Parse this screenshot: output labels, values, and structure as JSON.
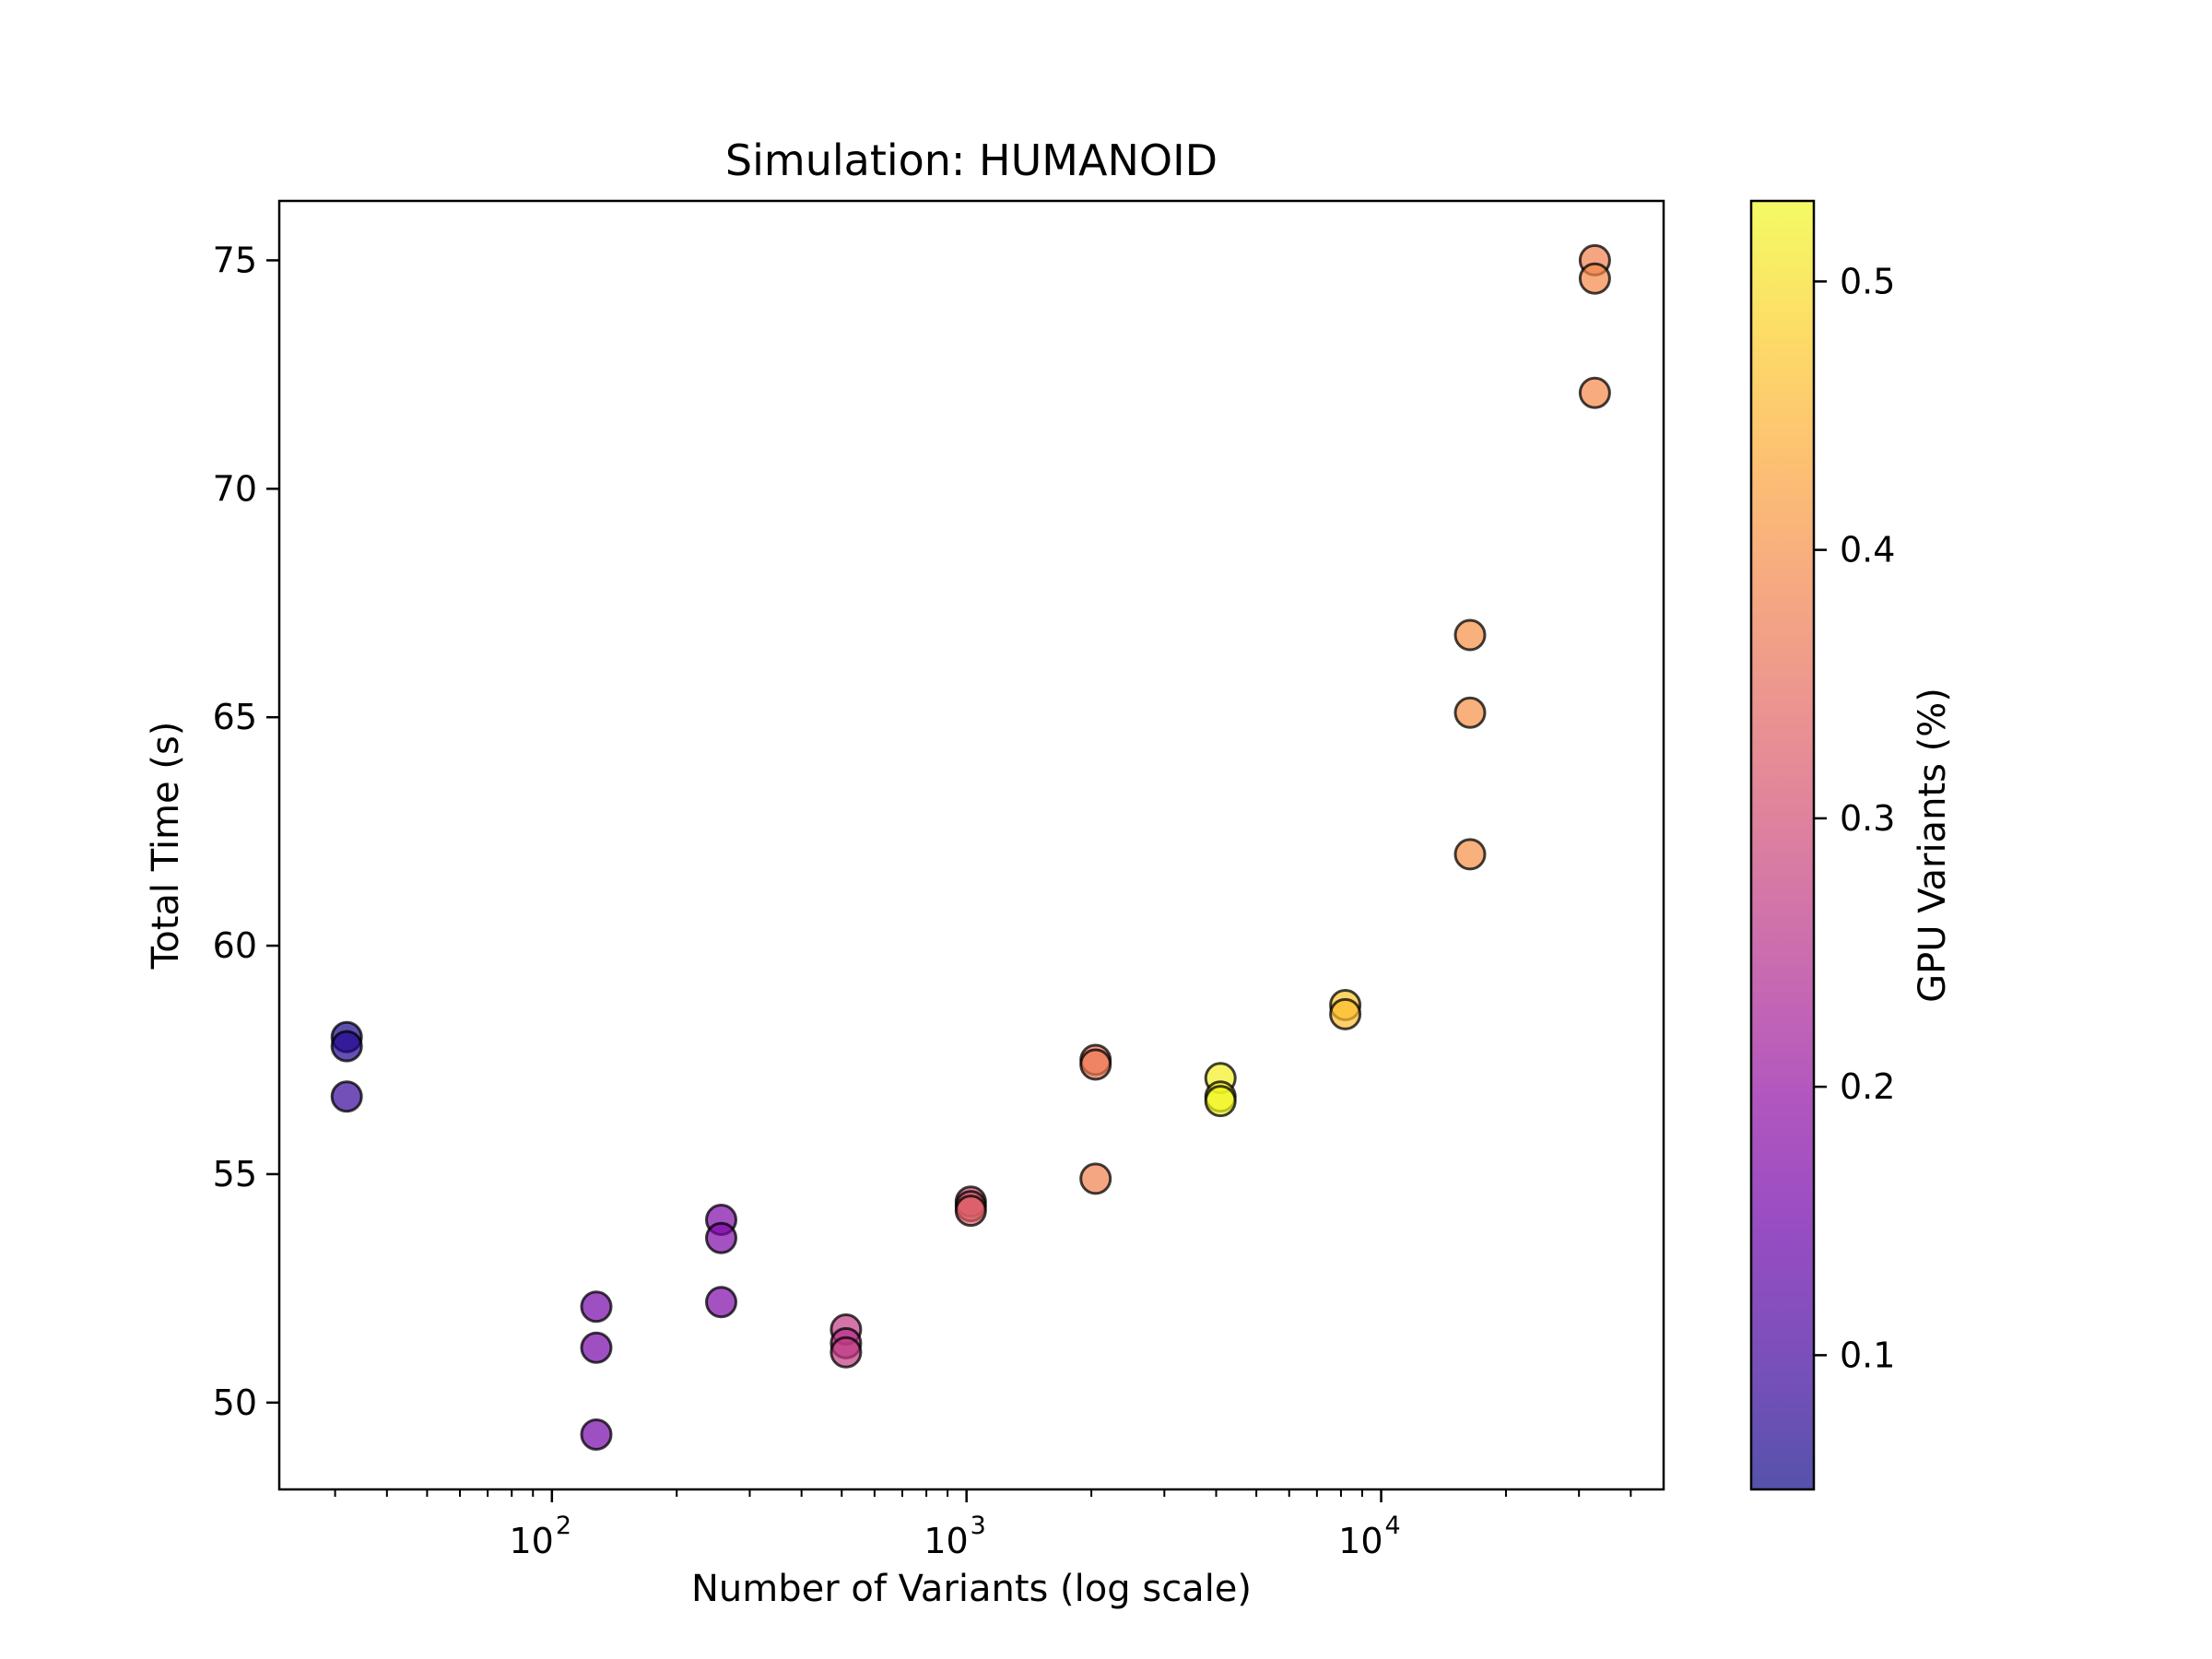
{
  "chart_data": {
    "type": "scatter",
    "title": "Simulation: HUMANOID",
    "xlabel": "Number of Variants (log scale)",
    "ylabel": "Total Time (s)",
    "xscale": "log",
    "xlim": [
      22,
      48000
    ],
    "ylim": [
      48.1,
      76.3
    ],
    "xticks": [
      {
        "value": 100,
        "label": "10",
        "exp": "2"
      },
      {
        "value": 1000,
        "label": "10",
        "exp": "3"
      },
      {
        "value": 10000,
        "label": "10",
        "exp": "4"
      }
    ],
    "yticks": [
      50,
      55,
      60,
      65,
      70,
      75
    ],
    "grid": false,
    "colorbar": {
      "label": "GPU Variants (%)",
      "colormap": "plasma",
      "range": [
        0.05,
        0.53
      ],
      "ticks": [
        0.1,
        0.2,
        0.3,
        0.4,
        0.5
      ]
    },
    "points": [
      {
        "x": 32,
        "y": 58.0,
        "c": 0.06
      },
      {
        "x": 32,
        "y": 57.8,
        "c": 0.07
      },
      {
        "x": 32,
        "y": 56.7,
        "c": 0.09
      },
      {
        "x": 128,
        "y": 52.1,
        "c": 0.16
      },
      {
        "x": 128,
        "y": 51.2,
        "c": 0.16
      },
      {
        "x": 128,
        "y": 49.3,
        "c": 0.16
      },
      {
        "x": 256,
        "y": 54.0,
        "c": 0.17
      },
      {
        "x": 256,
        "y": 53.6,
        "c": 0.17
      },
      {
        "x": 256,
        "y": 52.2,
        "c": 0.17
      },
      {
        "x": 512,
        "y": 51.6,
        "c": 0.27
      },
      {
        "x": 512,
        "y": 51.3,
        "c": 0.25
      },
      {
        "x": 512,
        "y": 51.1,
        "c": 0.27
      },
      {
        "x": 1024,
        "y": 54.4,
        "c": 0.3
      },
      {
        "x": 1024,
        "y": 54.3,
        "c": 0.32
      },
      {
        "x": 1024,
        "y": 54.2,
        "c": 0.33
      },
      {
        "x": 2048,
        "y": 57.5,
        "c": 0.36
      },
      {
        "x": 2048,
        "y": 57.4,
        "c": 0.37
      },
      {
        "x": 2048,
        "y": 54.9,
        "c": 0.38
      },
      {
        "x": 4096,
        "y": 57.1,
        "c": 0.52
      },
      {
        "x": 4096,
        "y": 56.7,
        "c": 0.51
      },
      {
        "x": 4096,
        "y": 56.6,
        "c": 0.53
      },
      {
        "x": 8192,
        "y": 58.7,
        "c": 0.47
      },
      {
        "x": 8192,
        "y": 58.5,
        "c": 0.46
      },
      {
        "x": 16384,
        "y": 66.8,
        "c": 0.4
      },
      {
        "x": 16384,
        "y": 65.1,
        "c": 0.4
      },
      {
        "x": 16384,
        "y": 62.0,
        "c": 0.4
      },
      {
        "x": 32768,
        "y": 75.0,
        "c": 0.38
      },
      {
        "x": 32768,
        "y": 74.6,
        "c": 0.39
      },
      {
        "x": 32768,
        "y": 72.1,
        "c": 0.39
      }
    ]
  }
}
